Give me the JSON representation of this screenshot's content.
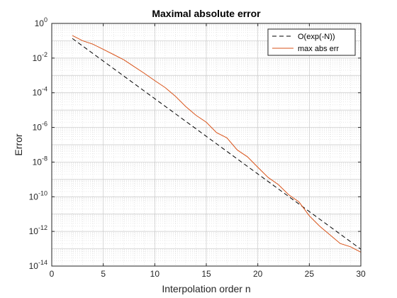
{
  "chart_data": {
    "type": "line",
    "title": "Maximal absolute error",
    "xlabel": "Interpolation order n",
    "ylabel": "Error",
    "xlim": [
      0,
      30
    ],
    "ylim_log10": [
      -14,
      0
    ],
    "yscale": "log",
    "grid": "major and minor",
    "legend_position": "top-right",
    "x_ticks": [
      0,
      5,
      10,
      15,
      20,
      25,
      30
    ],
    "y_tick_exponents": [
      0,
      -2,
      -4,
      -6,
      -8,
      -10,
      -12,
      -14
    ],
    "y_tick_base": "10",
    "series": [
      {
        "name": "O(exp(-N))",
        "color": "#000000",
        "style": "dashed",
        "x": [
          2,
          30
        ],
        "y": [
          0.135,
          9.4e-14
        ]
      },
      {
        "name": "max abs err",
        "color": "#D95319",
        "style": "solid",
        "x": [
          2,
          3,
          4,
          5,
          6,
          7,
          8,
          9,
          10,
          11,
          12,
          13,
          14,
          15,
          16,
          17,
          18,
          19,
          20,
          21,
          22,
          23,
          24,
          25,
          26,
          27,
          28,
          29,
          30
        ],
        "y": [
          0.2,
          0.1,
          0.063,
          0.032,
          0.016,
          0.0079,
          0.0032,
          0.0013,
          0.0005,
          0.0002,
          6.3e-05,
          1.6e-05,
          5e-06,
          2e-06,
          5e-07,
          2.5e-07,
          5e-08,
          2e-08,
          5e-09,
          1.3e-09,
          5e-10,
          1.3e-10,
          5e-11,
          7.9e-12,
          2e-12,
          6.3e-13,
          2e-13,
          1.3e-13,
          6.3e-14
        ]
      }
    ]
  }
}
